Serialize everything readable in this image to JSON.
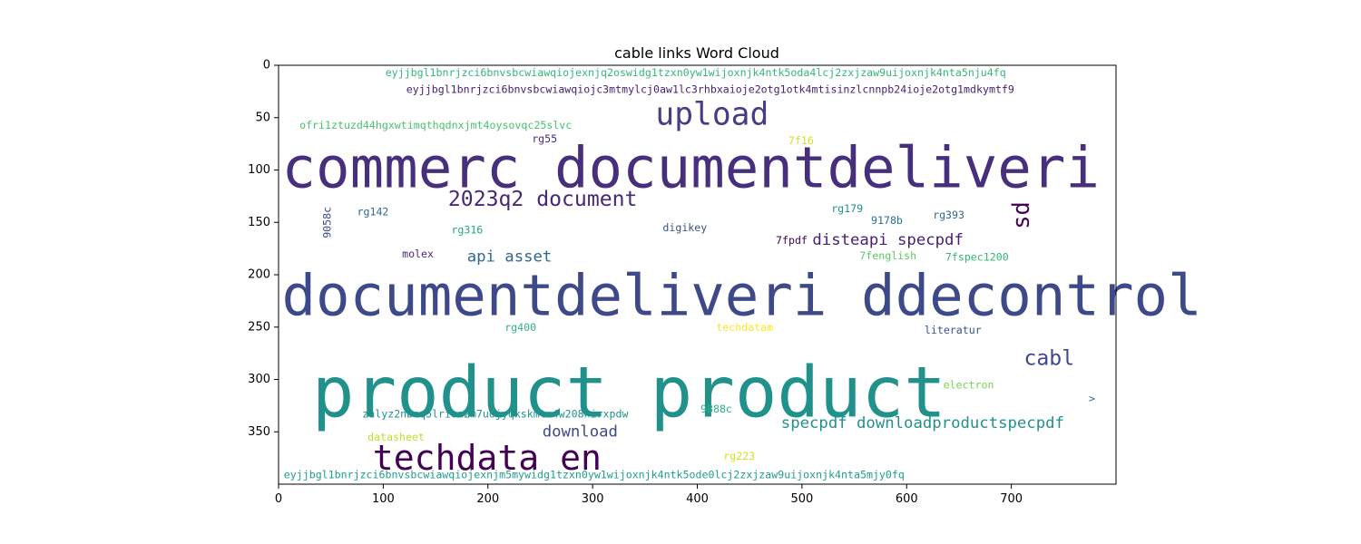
{
  "chart_data": {
    "type": "wordcloud",
    "title": "cable links Word Cloud",
    "xlabel": "",
    "ylabel": "",
    "xlim": [
      0,
      800
    ],
    "ylim": [
      400,
      0
    ],
    "x_ticks": [
      0,
      100,
      200,
      300,
      400,
      500,
      600,
      700
    ],
    "y_ticks": [
      0,
      50,
      100,
      150,
      200,
      250,
      300,
      350
    ],
    "words": [
      {
        "text": "eyjjbgl1bnrjzci6bnvsbcwiawqiojexnjq2oswidg1tzxn0yw1wijoxnjk4ntk5oda4lcj2zxjzaw9uijoxnjk4nta5nju4fq",
        "x": 102,
        "y": 7,
        "size": 10,
        "color": "#35b779",
        "vertical": false
      },
      {
        "text": "eyjjbgl1bnrjzci6bnvsbcwiawqiojc3mtmylcj0aw1lc3rhbxaioje2otg1otk4mtisinzlcnnpb24ioje2otg1mdkymtf9",
        "x": 122,
        "y": 23,
        "size": 10,
        "color": "#482173",
        "vertical": false
      },
      {
        "text": "upload",
        "x": 360,
        "y": 47,
        "size": 30,
        "color": "#433e85",
        "vertical": false
      },
      {
        "text": "ofri1ztuzd44hgxwtimqthqdnxjmt4oysovqc25slvc",
        "x": 20,
        "y": 57,
        "size": 10,
        "color": "#4ac16d",
        "vertical": false
      },
      {
        "text": "rg55",
        "x": 242,
        "y": 70,
        "size": 10,
        "color": "#472d7b",
        "vertical": false
      },
      {
        "text": "7f16",
        "x": 487,
        "y": 72,
        "size": 10,
        "color": "#d2e21b",
        "vertical": false
      },
      {
        "text": "commerc documentdeliveri",
        "x": 3,
        "y": 98,
        "size": 54,
        "color": "#472f7d",
        "vertical": false
      },
      {
        "text": "2023q2 document",
        "x": 162,
        "y": 128,
        "size": 20,
        "color": "#482878",
        "vertical": false
      },
      {
        "text": "sd",
        "x": 700,
        "y": 130,
        "size": 22,
        "color": "#440154",
        "vertical": true
      },
      {
        "text": "9058c",
        "x": 42,
        "y": 135,
        "size": 10,
        "color": "#3e4989",
        "vertical": true
      },
      {
        "text": "rg142",
        "x": 75,
        "y": 140,
        "size": 10,
        "color": "#31688e",
        "vertical": false
      },
      {
        "text": "rg179",
        "x": 528,
        "y": 137,
        "size": 10,
        "color": "#21918c",
        "vertical": false
      },
      {
        "text": "rg393",
        "x": 625,
        "y": 143,
        "size": 10,
        "color": "#31688e",
        "vertical": false
      },
      {
        "text": "9178b",
        "x": 566,
        "y": 148,
        "size": 10,
        "color": "#2c728e",
        "vertical": false
      },
      {
        "text": "rg316",
        "x": 165,
        "y": 157,
        "size": 10,
        "color": "#22a884",
        "vertical": false
      },
      {
        "text": "digikey",
        "x": 367,
        "y": 155,
        "size": 10,
        "color": "#3b528b",
        "vertical": false
      },
      {
        "text": "7fpdf",
        "x": 475,
        "y": 167,
        "size": 10,
        "color": "#440154",
        "vertical": false
      },
      {
        "text": "disteapi specpdf",
        "x": 510,
        "y": 167,
        "size": 15,
        "color": "#482173",
        "vertical": false
      },
      {
        "text": "molex",
        "x": 118,
        "y": 180,
        "size": 10,
        "color": "#482878",
        "vertical": false
      },
      {
        "text": "api asset",
        "x": 180,
        "y": 183,
        "size": 15,
        "color": "#31688e",
        "vertical": false
      },
      {
        "text": "7fenglish",
        "x": 555,
        "y": 182,
        "size": 10,
        "color": "#5ec962",
        "vertical": false
      },
      {
        "text": "7fspec1200",
        "x": 637,
        "y": 183,
        "size": 10,
        "color": "#35b779",
        "vertical": false
      },
      {
        "text": "documentdeliveri ddecontrol",
        "x": 3,
        "y": 220,
        "size": 54,
        "color": "#3e4989",
        "vertical": false
      },
      {
        "text": "rg400",
        "x": 216,
        "y": 250,
        "size": 10,
        "color": "#2db27d",
        "vertical": false
      },
      {
        "text": "techdatam",
        "x": 418,
        "y": 250,
        "size": 10,
        "color": "#fde725",
        "vertical": false
      },
      {
        "text": "literatur",
        "x": 617,
        "y": 253,
        "size": 10,
        "color": "#3b528b",
        "vertical": false
      },
      {
        "text": "cabl",
        "x": 712,
        "y": 280,
        "size": 20,
        "color": "#3e4989",
        "vertical": false
      },
      {
        "text": "product product",
        "x": 32,
        "y": 313,
        "size": 67,
        "color": "#21918c",
        "vertical": false
      },
      {
        "text": "electron",
        "x": 635,
        "y": 305,
        "size": 10,
        "color": "#7ad151",
        "vertical": false
      },
      {
        "text": ">",
        "x": 774,
        "y": 318,
        "size": 10,
        "color": "#31688e",
        "vertical": false
      },
      {
        "text": "9888c",
        "x": 403,
        "y": 328,
        "size": 10,
        "color": "#2db27d",
        "vertical": false
      },
      {
        "text": "zalyz2nbeq5lrioa2m7uojyqkskmtn4w208nirxpdw",
        "x": 80,
        "y": 333,
        "size": 10,
        "color": "#21918c",
        "vertical": false
      },
      {
        "text": "specpdf downloadproductspecpdf",
        "x": 480,
        "y": 342,
        "size": 15,
        "color": "#21918c",
        "vertical": false
      },
      {
        "text": "download",
        "x": 252,
        "y": 350,
        "size": 15,
        "color": "#3e4989",
        "vertical": false
      },
      {
        "text": "datasheet",
        "x": 85,
        "y": 355,
        "size": 10,
        "color": "#bddf26",
        "vertical": false
      },
      {
        "text": "techdata en",
        "x": 90,
        "y": 375,
        "size": 33,
        "color": "#440154",
        "vertical": false
      },
      {
        "text": "rg223",
        "x": 425,
        "y": 373,
        "size": 10,
        "color": "#d2e21b",
        "vertical": false
      },
      {
        "text": "eyjjbgl1bnrjzci6bnvsbcwiawqiojexnjm5mywidg1tzxn0yw1wijoxnjk4ntk5ode0lcj2zxjzaw9uijoxnjk4nta5mjy0fq",
        "x": 5,
        "y": 391,
        "size": 10,
        "color": "#1f9e89",
        "vertical": false
      }
    ]
  }
}
